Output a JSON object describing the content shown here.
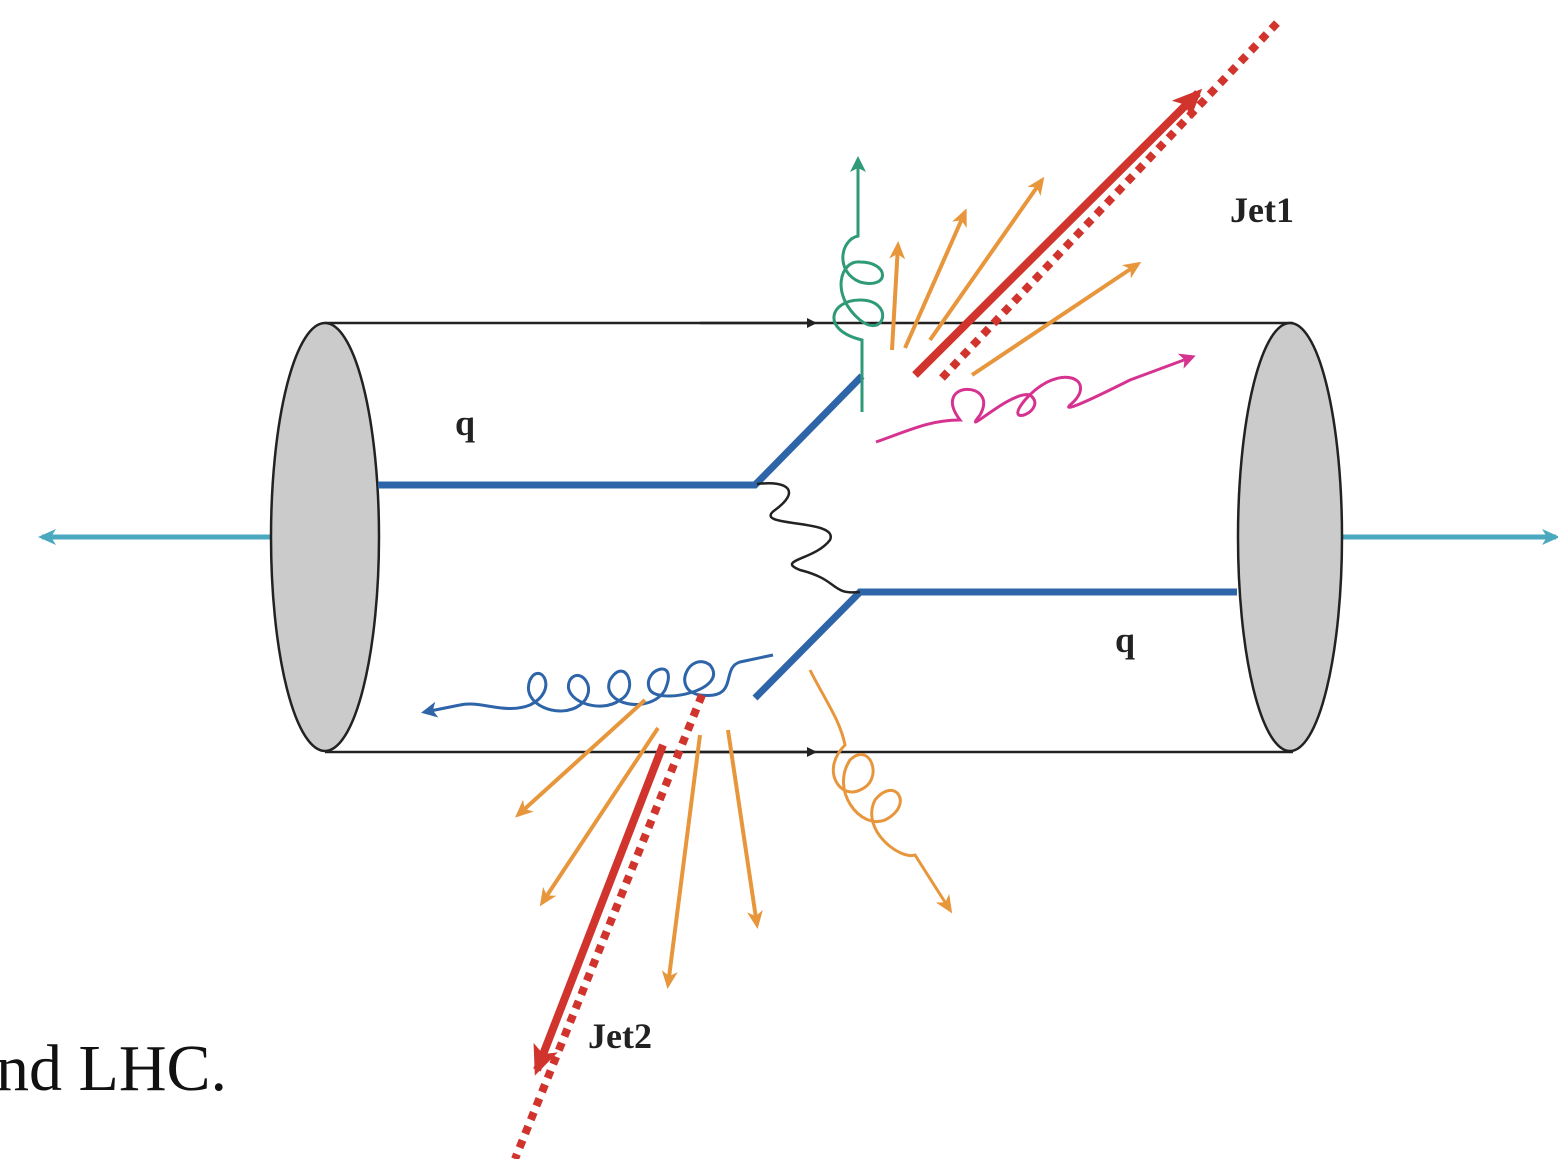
{
  "labels": {
    "jet1": "Jet1",
    "quark_top": "q",
    "quark_bottom": "q",
    "jet2": "Jet2"
  },
  "caption": "nd LHC."
}
